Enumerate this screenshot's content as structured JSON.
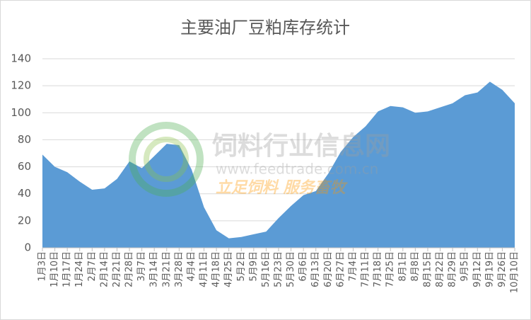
{
  "chart_data": {
    "type": "area",
    "title": "主要油厂豆粕库存统计",
    "categories": [
      "1月3日",
      "1月10日",
      "1月17日",
      "1月24日",
      "2月7日",
      "2月14日",
      "2月21日",
      "2月28日",
      "3月7日",
      "3月14日",
      "3月21日",
      "3月28日",
      "4月4日",
      "4月11日",
      "4月18日",
      "4月25日",
      "5月2日",
      "5月9日",
      "5月16日",
      "5月23日",
      "5月30日",
      "6月6日",
      "6月13日",
      "6月20日",
      "6月27日",
      "7月4日",
      "7月11日",
      "7月18日",
      "7月25日",
      "8月1日",
      "8月8日",
      "8月15日",
      "8月22日",
      "8月29日",
      "9月5日",
      "9月12日",
      "9月19日",
      "9月26日",
      "10月10日"
    ],
    "values": [
      69,
      60,
      56,
      49,
      43,
      44,
      51,
      64,
      59,
      68,
      77,
      76,
      58,
      30,
      13,
      7,
      8,
      10,
      12,
      22,
      31,
      39,
      42,
      55,
      71,
      82,
      90,
      101,
      105,
      104,
      100,
      101,
      104,
      107,
      113,
      115,
      123,
      117,
      107
    ],
    "color": "#5b9bd5",
    "ylim": [
      0,
      140
    ],
    "yticks": [
      0,
      20,
      40,
      60,
      80,
      100,
      120,
      140
    ],
    "grid": true,
    "watermark": {
      "name": "饲料行业信息网",
      "url": "www.feedtrade.com.cn",
      "slogan": "立足饲料  服务畜牧"
    }
  }
}
